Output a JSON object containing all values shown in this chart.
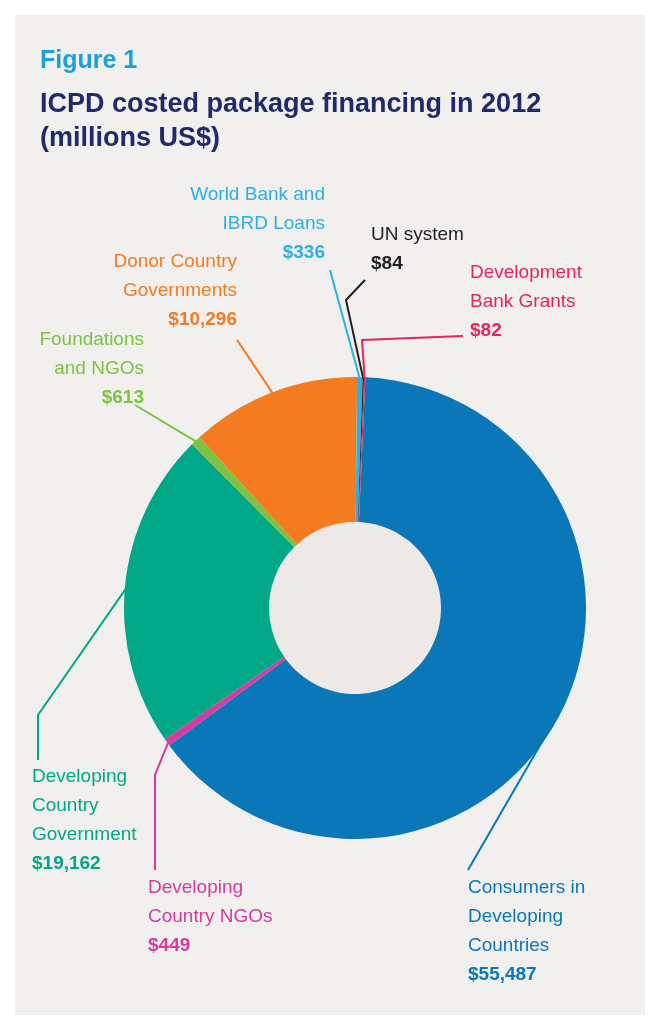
{
  "chart_data": {
    "type": "donut",
    "title": "ICPD costed package financing in 2012 (millions US$)",
    "annotations": [
      "Figure 1"
    ],
    "categories": [
      "Consumers in Developing Countries",
      "Developing Country NGOs",
      "Developing Country Government",
      "Foundations and NGOs",
      "Donor Country Governments",
      "World Bank and IBRD Loans",
      "UN system",
      "Development Bank Grants"
    ],
    "values": [
      55487,
      449,
      19162,
      613,
      10296,
      336,
      84,
      82
    ],
    "value_labels": [
      "$55,487",
      "$449",
      "$19,162",
      "$613",
      "$10,296",
      "$336",
      "$84",
      "$82"
    ],
    "colors": [
      "#0a77b8",
      "#d63ba0",
      "#00a887",
      "#7dc242",
      "#f47b20",
      "#2bb0e6",
      "#231f20",
      "#e8245a"
    ]
  }
}
